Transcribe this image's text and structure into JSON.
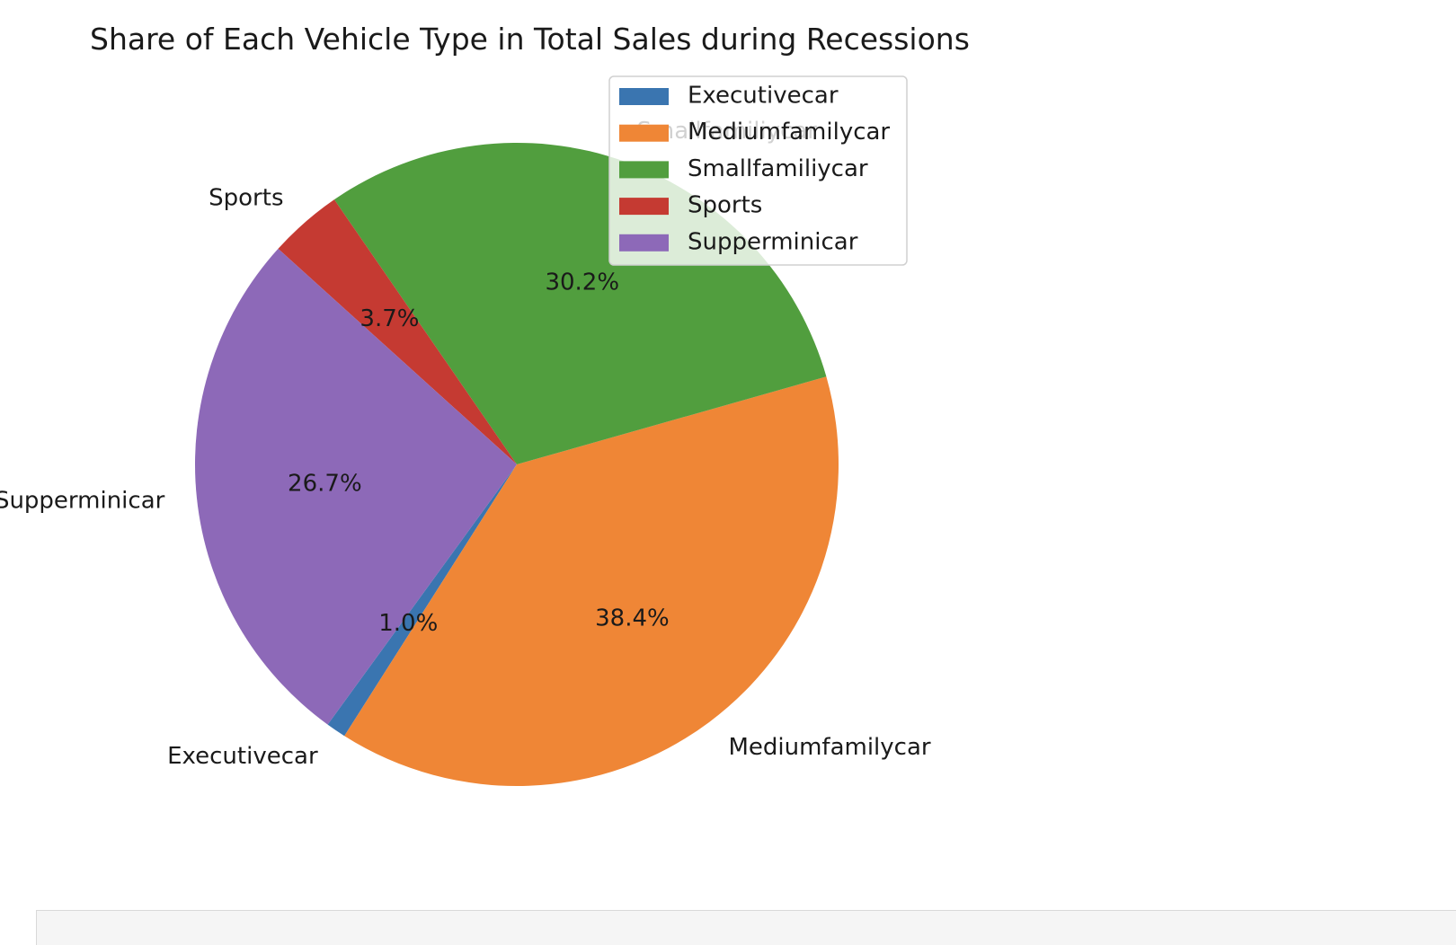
{
  "chart_data": {
    "type": "pie",
    "title": "Share of Each Vehicle Type in Total Sales during Recessions",
    "labels": [
      "Executivecar",
      "Mediumfamilycar",
      "Smallfamiliycar",
      "Sports",
      "Supperminicar"
    ],
    "values": [
      1.0,
      38.4,
      30.2,
      3.7,
      26.7
    ],
    "value_labels": [
      "1.0%",
      "38.4%",
      "30.2%",
      "3.7%",
      "26.7%"
    ],
    "colors": [
      "#3a75b0",
      "#ef8636",
      "#519e3e",
      "#c53a32",
      "#8d69b8"
    ],
    "start_angle_deg": 234,
    "direction": "counterclockwise",
    "legend": {
      "placement": "upper-right",
      "entries": [
        "Executivecar",
        "Mediumfamilycar",
        "Smallfamiliycar",
        "Sports",
        "Supperminicar"
      ]
    }
  }
}
